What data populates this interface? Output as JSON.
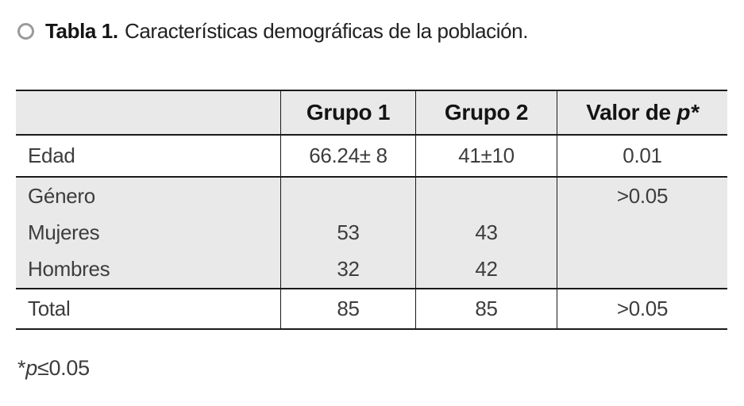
{
  "colors": {
    "header_bg": "#e9e9e9",
    "block_bg": "#e9e9e9",
    "border": "#1a1a1a",
    "title_text": "#141414",
    "data_text": "#3d3d3d",
    "ring": "#9a9a9a"
  },
  "title": {
    "label_bold": "Tabla 1.",
    "label_rest": "Características demográficas de la población."
  },
  "table": {
    "header": {
      "stub": "",
      "grupo1": "Grupo 1",
      "grupo2": "Grupo 2",
      "valor_prefix": "Valor de",
      "valor_italic": "p*"
    },
    "rows": {
      "edad": {
        "label": "Edad",
        "grupo1": "66.24± 8",
        "grupo2": "41±10",
        "p": "0.01"
      },
      "genero": {
        "label": "Género",
        "p": ">0.05",
        "sub": [
          {
            "label": "Mujeres",
            "grupo1": "53",
            "grupo2": "43"
          },
          {
            "label": "Hombres",
            "grupo1": "32",
            "grupo2": "42"
          }
        ]
      },
      "total": {
        "label": "Total",
        "grupo1": "85",
        "grupo2": "85",
        "p": ">0.05"
      }
    }
  },
  "footnote": {
    "asterisk": "*",
    "p": "p",
    "rest": "≤0.05"
  }
}
